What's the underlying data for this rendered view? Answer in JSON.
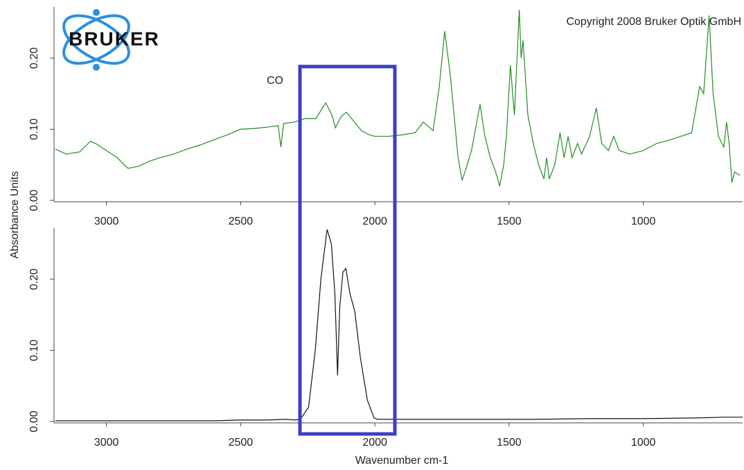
{
  "chart_data": [
    {
      "type": "line",
      "ylabel": "Absorbance Units",
      "annotations": [
        "Copyright 2008 Bruker Optik GmbH",
        "CO",
        "BRUKER"
      ],
      "xlim": [
        3190,
        630
      ],
      "ylim": [
        0,
        0.27
      ],
      "xticks": [
        3000,
        2500,
        2000,
        1500,
        1000
      ],
      "yticks": [
        {
          "value": 0,
          "label": "0.00"
        },
        {
          "value": 0.1,
          "label": "0.10"
        },
        {
          "value": 0.2,
          "label": "0.20"
        }
      ],
      "series": [
        {
          "color": "#228b22",
          "x": [
            3190,
            3150,
            3100,
            3060,
            3040,
            3000,
            2960,
            2920,
            2880,
            2840,
            2800,
            2750,
            2700,
            2650,
            2600,
            2550,
            2500,
            2450,
            2400,
            2360,
            2350,
            2340,
            2300,
            2260,
            2220,
            2183,
            2160,
            2147,
            2125,
            2106,
            2080,
            2050,
            2020,
            2000,
            1950,
            1900,
            1850,
            1820,
            1783,
            1760,
            1740,
            1720,
            1700,
            1690,
            1675,
            1660,
            1640,
            1608,
            1590,
            1570,
            1550,
            1535,
            1520,
            1510,
            1495,
            1480,
            1462,
            1455,
            1448,
            1430,
            1410,
            1390,
            1370,
            1360,
            1350,
            1330,
            1310,
            1295,
            1280,
            1265,
            1245,
            1230,
            1200,
            1175,
            1155,
            1130,
            1110,
            1090,
            1050,
            1000,
            950,
            900,
            860,
            820,
            790,
            775,
            755,
            740,
            720,
            700,
            690,
            680,
            670,
            660,
            640
          ],
          "values": [
            0.072,
            0.065,
            0.068,
            0.083,
            0.08,
            0.07,
            0.06,
            0.045,
            0.048,
            0.055,
            0.06,
            0.065,
            0.072,
            0.078,
            0.085,
            0.092,
            0.1,
            0.101,
            0.103,
            0.105,
            0.075,
            0.108,
            0.11,
            0.115,
            0.115,
            0.137,
            0.12,
            0.102,
            0.118,
            0.124,
            0.112,
            0.098,
            0.092,
            0.09,
            0.09,
            0.092,
            0.095,
            0.11,
            0.098,
            0.16,
            0.238,
            0.18,
            0.1,
            0.06,
            0.028,
            0.045,
            0.07,
            0.135,
            0.09,
            0.06,
            0.04,
            0.02,
            0.05,
            0.09,
            0.19,
            0.12,
            0.268,
            0.2,
            0.225,
            0.12,
            0.08,
            0.05,
            0.03,
            0.06,
            0.03,
            0.05,
            0.095,
            0.06,
            0.09,
            0.06,
            0.08,
            0.065,
            0.09,
            0.13,
            0.08,
            0.07,
            0.09,
            0.07,
            0.065,
            0.07,
            0.08,
            0.085,
            0.09,
            0.095,
            0.16,
            0.15,
            0.26,
            0.15,
            0.09,
            0.075,
            0.11,
            0.08,
            0.025,
            0.04,
            0.035
          ]
        }
      ]
    },
    {
      "type": "line",
      "xlabel": "Wavenumber cm-1",
      "xlim": [
        3190,
        630
      ],
      "ylim": [
        0,
        0.27
      ],
      "xticks": [
        3000,
        2500,
        2000,
        1500,
        1000
      ],
      "yticks": [
        {
          "value": 0,
          "label": "0.00"
        },
        {
          "value": 0.1,
          "label": "0.10"
        },
        {
          "value": 0.2,
          "label": "0.20"
        }
      ],
      "series": [
        {
          "color": "#111111",
          "x": [
            3190,
            3000,
            2800,
            2600,
            2500,
            2400,
            2330,
            2300,
            2278,
            2247,
            2222,
            2201,
            2178,
            2162,
            2149,
            2139,
            2131,
            2119,
            2108,
            2093,
            2075,
            2054,
            2028,
            2003,
            1990,
            1800,
            1600,
            1400,
            1200,
            1000,
            800,
            700,
            630
          ],
          "values": [
            0.001,
            0.001,
            0.001,
            0.001,
            0.002,
            0.002,
            0.003,
            0.002,
            0.003,
            0.02,
            0.1,
            0.2,
            0.27,
            0.25,
            0.18,
            0.065,
            0.16,
            0.21,
            0.215,
            0.18,
            0.155,
            0.09,
            0.03,
            0.005,
            0.003,
            0.003,
            0.003,
            0.003,
            0.004,
            0.004,
            0.005,
            0.006,
            0.006
          ]
        }
      ]
    }
  ]
}
